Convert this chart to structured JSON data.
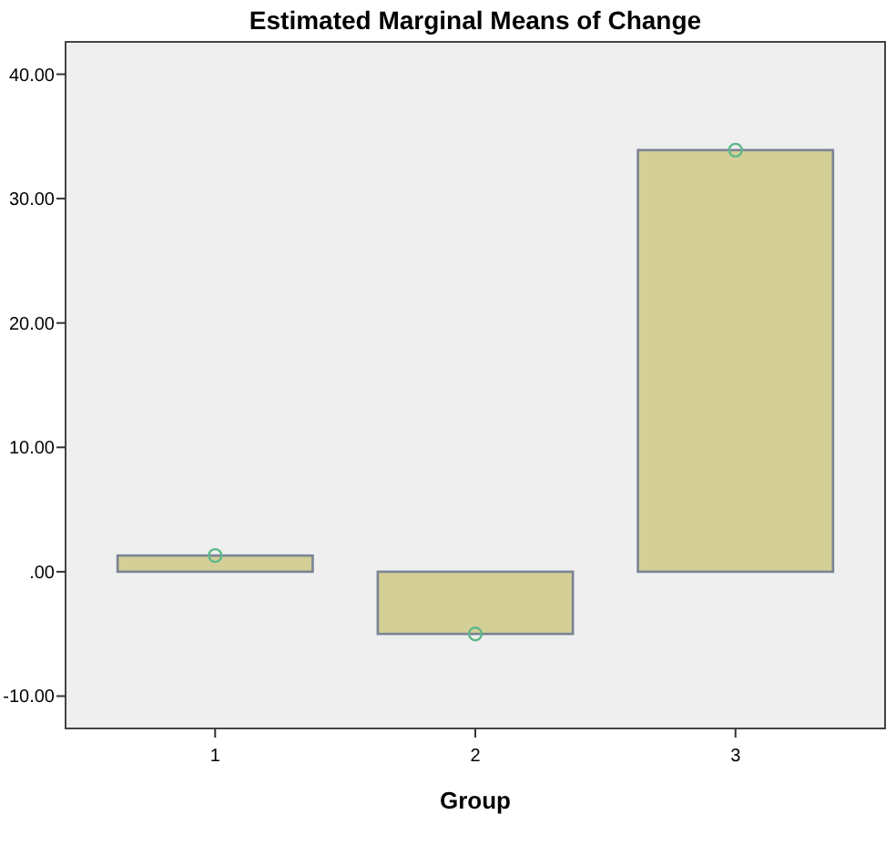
{
  "chart_data": {
    "type": "bar",
    "title": "Estimated Marginal Means of Change",
    "xlabel": "Group",
    "categories": [
      "1",
      "2",
      "3"
    ],
    "series": [
      {
        "color": "#d3cf96",
        "values": [
          1.3,
          -5.0,
          33.9
        ]
      },
      {
        "type": "scatter",
        "color": "#5fb88a",
        "x": [
          "1",
          "2",
          "3"
        ],
        "values": [
          1.3,
          -5.0,
          33.9
        ],
        "marker": "circle"
      }
    ],
    "ylim": [
      -12.6,
      42.6
    ],
    "yticks": [
      {
        "value": 40,
        "label": "40.00"
      },
      {
        "value": 30,
        "label": "30.00"
      },
      {
        "value": 20,
        "label": "20.00"
      },
      {
        "value": 10,
        "label": "10.00"
      },
      {
        "value": 0,
        "label": ".00"
      },
      {
        "value": -10,
        "label": "-10.00"
      }
    ],
    "grid": false
  }
}
